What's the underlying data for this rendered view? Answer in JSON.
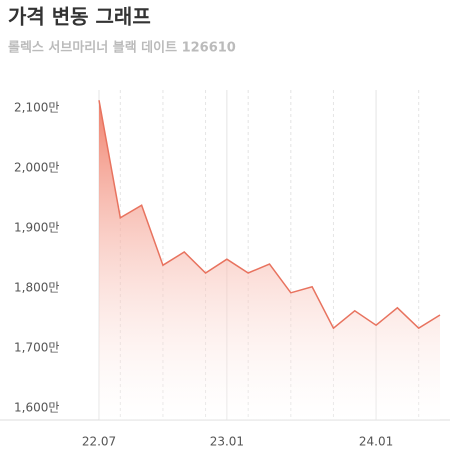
{
  "chart_data": {
    "type": "area",
    "title": "가격 변동 그래프",
    "subtitle": "롤렉스 서브마리너 블랙 데이트 126610",
    "categories": [
      "22.07",
      null,
      null,
      null,
      null,
      null,
      "23.01",
      null,
      null,
      null,
      null,
      null,
      null,
      "24.01",
      null,
      null,
      null
    ],
    "series": [
      {
        "color": "#e8735f",
        "values": [
          2113,
          1917,
          1938,
          1838,
          1860,
          1825,
          1848,
          1825,
          1840,
          1792,
          1802,
          1733,
          1762,
          1738,
          1767,
          1733,
          1755
        ]
      }
    ],
    "ylim": [
      1580,
      2130
    ],
    "yticks": [
      {
        "value": 1600,
        "label": "1,600만"
      },
      {
        "value": 1700,
        "label": "1,700만"
      },
      {
        "value": 1800,
        "label": "1,800만"
      },
      {
        "value": 1900,
        "label": "1,900만"
      },
      {
        "value": 2000,
        "label": "2,000만"
      },
      {
        "value": 2100,
        "label": "2,100만"
      }
    ]
  }
}
